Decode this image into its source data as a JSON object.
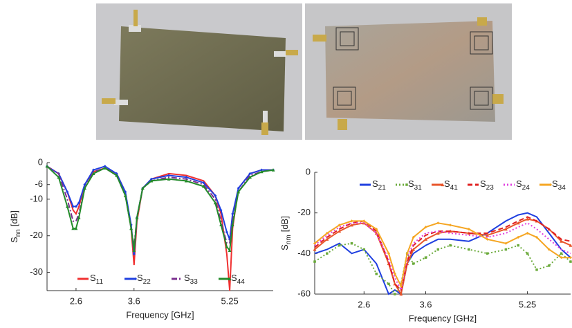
{
  "chart_data": [
    {
      "type": "line",
      "xlabel": "Frequency [GHz]",
      "ylabel": {
        "symbol": "S",
        "subscript": "nn",
        "unit": "[dB]"
      },
      "xlim": [
        2.1,
        6.0
      ],
      "xticks": [
        2.6,
        3.6,
        5.25
      ],
      "ylim": [
        -35,
        0
      ],
      "yticks": [
        0,
        -6,
        -10,
        -20,
        -30
      ],
      "legend": "bottom",
      "x": [
        2.1,
        2.3,
        2.45,
        2.55,
        2.6,
        2.65,
        2.75,
        2.9,
        3.1,
        3.3,
        3.45,
        3.55,
        3.6,
        3.65,
        3.75,
        3.9,
        4.2,
        4.5,
        4.8,
        5.0,
        5.1,
        5.2,
        5.25,
        5.3,
        5.4,
        5.6,
        5.8,
        6.0
      ],
      "series": [
        {
          "name": "S11",
          "color": "#f03030",
          "linestyle": "solid",
          "marker": "none",
          "values": [
            -1,
            -3,
            -8,
            -13,
            -14,
            -12,
            -6,
            -2.5,
            -1.5,
            -3,
            -8,
            -18,
            -28,
            -16,
            -7,
            -4.5,
            -3,
            -3.5,
            -5,
            -9,
            -14,
            -25,
            -35,
            -18,
            -7,
            -3,
            -2,
            -2
          ]
        },
        {
          "name": "S22",
          "color": "#1f3fe0",
          "linestyle": "solid",
          "marker": "diamond",
          "values": [
            -1,
            -3,
            -8,
            -12,
            -12,
            -11,
            -6,
            -2,
            -1,
            -3,
            -8,
            -17,
            -25,
            -15,
            -7,
            -4.5,
            -3.5,
            -4,
            -5.5,
            -9,
            -13,
            -19,
            -21,
            -14,
            -7,
            -3,
            -2,
            -2
          ]
        },
        {
          "name": "S33",
          "color": "#7a2f8e",
          "linestyle": "dashdot",
          "marker": "none",
          "values": [
            -1,
            -3,
            -10,
            -16,
            -16,
            -14,
            -7,
            -2.5,
            -1.5,
            -3.5,
            -9,
            -18,
            -23,
            -15,
            -7,
            -5,
            -4,
            -4.5,
            -6,
            -10,
            -16,
            -22,
            -22,
            -16,
            -8,
            -3.5,
            -2.5,
            -2
          ]
        },
        {
          "name": "S44",
          "color": "#238b2a",
          "linestyle": "solid",
          "marker": "triangle",
          "values": [
            -1,
            -4,
            -12,
            -18,
            -18,
            -15,
            -7,
            -3,
            -1.5,
            -3.5,
            -9,
            -18,
            -24,
            -15,
            -7,
            -5,
            -4.5,
            -5,
            -6.5,
            -11,
            -17,
            -23,
            -24,
            -17,
            -8,
            -4,
            -2.5,
            -2
          ]
        }
      ]
    },
    {
      "type": "line",
      "xlabel": "Frequency [GHz]",
      "ylabel": {
        "symbol": "S",
        "subscript": "nm",
        "unit": "[dB]"
      },
      "xlim": [
        1.8,
        5.95
      ],
      "xticks": [
        2.6,
        3.6,
        5.25
      ],
      "ylim": [
        -60,
        0
      ],
      "yticks": [
        0,
        -20,
        -40,
        -60
      ],
      "legend": "top",
      "x": [
        1.8,
        2.0,
        2.2,
        2.4,
        2.6,
        2.8,
        3.0,
        3.1,
        3.2,
        3.3,
        3.4,
        3.6,
        3.8,
        4.0,
        4.3,
        4.6,
        4.9,
        5.1,
        5.25,
        5.4,
        5.6,
        5.8,
        5.95
      ],
      "series": [
        {
          "name": "S21",
          "color": "#1f3fe0",
          "linestyle": "solid",
          "marker": "none",
          "values": [
            -40,
            -38,
            -35,
            -40,
            -38,
            -45,
            -60,
            -58,
            -60,
            -45,
            -40,
            -36,
            -33,
            -33,
            -34,
            -30,
            -24,
            -21,
            -20,
            -22,
            -30,
            -38,
            -42
          ]
        },
        {
          "name": "S31",
          "color": "#6aaa3a",
          "linestyle": "dotted",
          "marker": "square",
          "values": [
            -44,
            -40,
            -36,
            -35,
            -38,
            -50,
            -55,
            -60,
            -55,
            -40,
            -45,
            -42,
            -38,
            -36,
            -38,
            -40,
            -38,
            -36,
            -40,
            -48,
            -46,
            -40,
            -44
          ]
        },
        {
          "name": "S41",
          "color": "#e8552a",
          "linestyle": "solid",
          "marker": "triangle",
          "values": [
            -38,
            -33,
            -29,
            -26,
            -25,
            -30,
            -45,
            -55,
            -60,
            -45,
            -38,
            -33,
            -30,
            -29,
            -30,
            -31,
            -28,
            -25,
            -23,
            -24,
            -28,
            -34,
            -36
          ]
        },
        {
          "name": "S23",
          "color": "#e02020",
          "linestyle": "dashed",
          "marker": "none",
          "values": [
            -37,
            -32,
            -28,
            -25,
            -24,
            -29,
            -44,
            -55,
            -58,
            -44,
            -36,
            -31,
            -29,
            -29,
            -30,
            -30,
            -27,
            -24,
            -22,
            -24,
            -28,
            -33,
            -34
          ]
        },
        {
          "name": "S24",
          "color": "#e040e0",
          "linestyle": "dotted",
          "marker": "none",
          "values": [
            -36,
            -31,
            -27,
            -25,
            -25,
            -30,
            -43,
            -52,
            -58,
            -42,
            -35,
            -30,
            -29,
            -30,
            -31,
            -32,
            -30,
            -27,
            -25,
            -28,
            -33,
            -38,
            -40
          ]
        },
        {
          "name": "S34",
          "color": "#f5a623",
          "linestyle": "solid",
          "marker": "diamond",
          "values": [
            -35,
            -30,
            -26,
            -24,
            -24,
            -28,
            -40,
            -50,
            -56,
            -40,
            -32,
            -27,
            -25,
            -26,
            -28,
            -33,
            -35,
            -32,
            -30,
            -32,
            -38,
            -42,
            -42
          ]
        }
      ]
    }
  ]
}
